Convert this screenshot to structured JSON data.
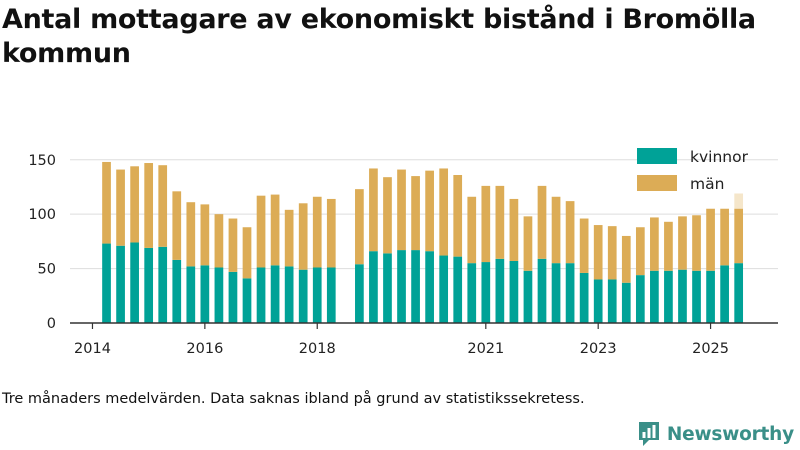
{
  "title": "Antal mottagare av ekonomiskt bistånd i Bromölla kommun",
  "note": "Tre månaders medelvärden. Data saknas ibland på grund av statistikssekretess.",
  "brand": {
    "name": "Newsworthy",
    "logo_icon": "bar-chart-speech-bubble-icon"
  },
  "colors": {
    "kvinnor": "#00a297",
    "man": "#dcac56",
    "man_faded": "#f5e6ca",
    "axis": "#333333",
    "grid": "#dddddd",
    "brand": "#3a8f88"
  },
  "chart_data": {
    "type": "bar",
    "stacked": true,
    "title": "Antal mottagare av ekonomiskt bistånd i Bromölla kommun",
    "x_unit": "quarter",
    "x_start": 2014.25,
    "x_step": 0.25,
    "ylim": [
      0,
      170
    ],
    "yticks": [
      0,
      50,
      100,
      150
    ],
    "xticks": [
      2014,
      2016,
      2018,
      2021,
      2023,
      2025
    ],
    "xlim": [
      2013.6,
      2026.2
    ],
    "grid": true,
    "legend_position": "top-right",
    "series": [
      {
        "name": "kvinnor",
        "color": "#00a297",
        "values": [
          73,
          71,
          74,
          69,
          70,
          58,
          52,
          53,
          51,
          47,
          41,
          51,
          53,
          52,
          49,
          51,
          51,
          null,
          54,
          66,
          64,
          67,
          67,
          66,
          62,
          61,
          55,
          56,
          59,
          57,
          48,
          59,
          55,
          55,
          46,
          40,
          40,
          37,
          44,
          48,
          48,
          49,
          48,
          48,
          53,
          55
        ]
      },
      {
        "name": "män",
        "color": "#dcac56",
        "values": [
          75,
          70,
          70,
          78,
          75,
          63,
          59,
          56,
          49,
          49,
          47,
          66,
          65,
          52,
          61,
          65,
          63,
          null,
          69,
          76,
          70,
          74,
          68,
          74,
          80,
          75,
          61,
          70,
          67,
          57,
          50,
          67,
          61,
          57,
          50,
          50,
          49,
          43,
          44,
          49,
          45,
          49,
          51,
          57,
          52,
          50
        ]
      }
    ],
    "partial_last": {
      "man_total": 119
    },
    "legend": [
      "kvinnor",
      "män"
    ]
  }
}
